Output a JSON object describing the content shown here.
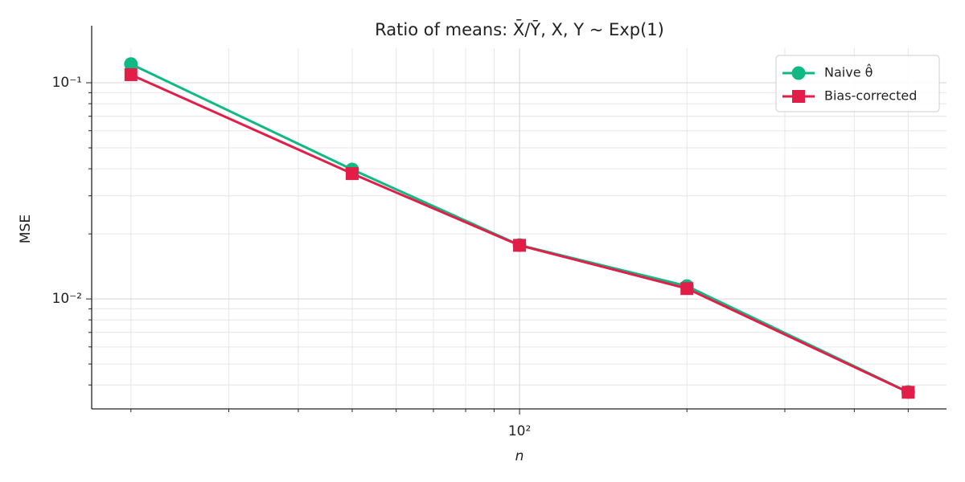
{
  "chart_data": {
    "type": "line",
    "title": "Ratio of means: X̄/Ȳ, X, Y ~ Exp(1)",
    "x_label": "n",
    "y_label": "MSE",
    "x": [
      20,
      50,
      100,
      200,
      500
    ],
    "series": [
      {
        "name": "Naive θ̂",
        "color": "#10b981",
        "marker": "circle",
        "values": [
          0.122,
          0.0397,
          0.01774,
          0.01147,
          0.00371
        ]
      },
      {
        "name": "Bias-corrected",
        "color": "#e11d48",
        "marker": "square",
        "values": [
          0.109,
          0.038,
          0.0177,
          0.01117,
          0.0037
        ]
      }
    ],
    "xscale": "log",
    "yscale": "log",
    "xlim": [
      17,
      586
    ],
    "ylim": [
      0.0031,
      0.1445
    ],
    "xticks": [
      {
        "value": 100,
        "label": "10²"
      }
    ],
    "yticks": [
      {
        "value": 0.01,
        "label": "10⁻²"
      },
      {
        "value": 0.1,
        "label": "10⁻¹"
      }
    ],
    "xminorticks": [
      20,
      30,
      40,
      50,
      60,
      70,
      80,
      90,
      200,
      300,
      400,
      500
    ],
    "yminorticks": [
      0.004,
      0.005,
      0.006,
      0.007,
      0.008,
      0.009,
      0.02,
      0.03,
      0.04,
      0.05,
      0.06,
      0.07,
      0.08,
      0.09
    ],
    "grid": true,
    "legend_position": "upper right"
  }
}
